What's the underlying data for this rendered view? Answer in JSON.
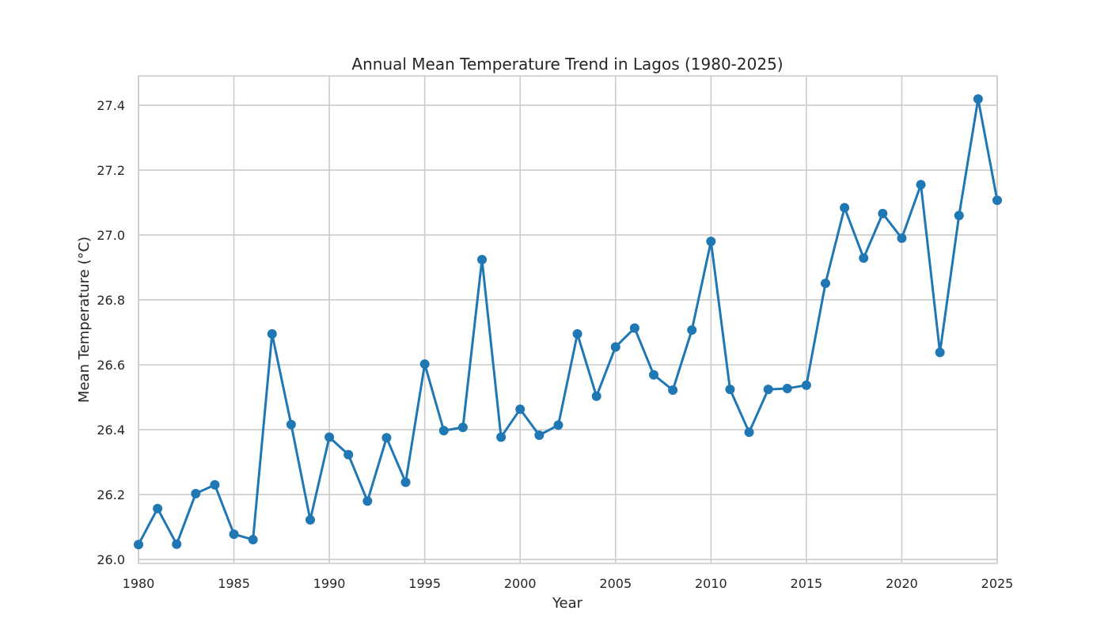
{
  "chart_data": {
    "type": "line",
    "title": "Annual Mean Temperature Trend in Lagos (1980-2025)",
    "xlabel": "Year",
    "ylabel": "Mean Temperature (°C)",
    "xlim": [
      1980,
      2025
    ],
    "ylim": [
      25.988,
      27.49
    ],
    "xticks": [
      1980,
      1985,
      1990,
      1995,
      2000,
      2005,
      2010,
      2015,
      2020,
      2025
    ],
    "yticks": [
      26.0,
      26.2,
      26.4,
      26.6,
      26.8,
      27.0,
      27.2,
      27.4
    ],
    "ytick_labels": [
      "26.0",
      "26.2",
      "26.4",
      "26.6",
      "26.8",
      "27.0",
      "27.2",
      "27.4"
    ],
    "grid": true,
    "color": "#1f77b4",
    "marker": "circle",
    "x": [
      1980,
      1981,
      1982,
      1983,
      1984,
      1985,
      1986,
      1987,
      1988,
      1989,
      1990,
      1991,
      1992,
      1993,
      1994,
      1995,
      1996,
      1997,
      1998,
      1999,
      2000,
      2001,
      2002,
      2003,
      2004,
      2005,
      2006,
      2007,
      2008,
      2009,
      2010,
      2011,
      2012,
      2013,
      2014,
      2015,
      2016,
      2017,
      2018,
      2019,
      2020,
      2021,
      2022,
      2023,
      2024,
      2025
    ],
    "values": [
      26.046,
      26.157,
      26.047,
      26.203,
      26.23,
      26.078,
      26.061,
      26.695,
      26.416,
      26.122,
      26.377,
      26.323,
      26.18,
      26.375,
      26.238,
      26.602,
      26.397,
      26.407,
      26.924,
      26.377,
      26.463,
      26.383,
      26.414,
      26.695,
      26.503,
      26.655,
      26.713,
      26.569,
      26.522,
      26.707,
      26.98,
      26.524,
      26.392,
      26.524,
      26.527,
      26.537,
      26.851,
      27.084,
      26.929,
      27.066,
      26.99,
      27.155,
      26.638,
      27.06,
      27.419,
      27.107
    ]
  }
}
